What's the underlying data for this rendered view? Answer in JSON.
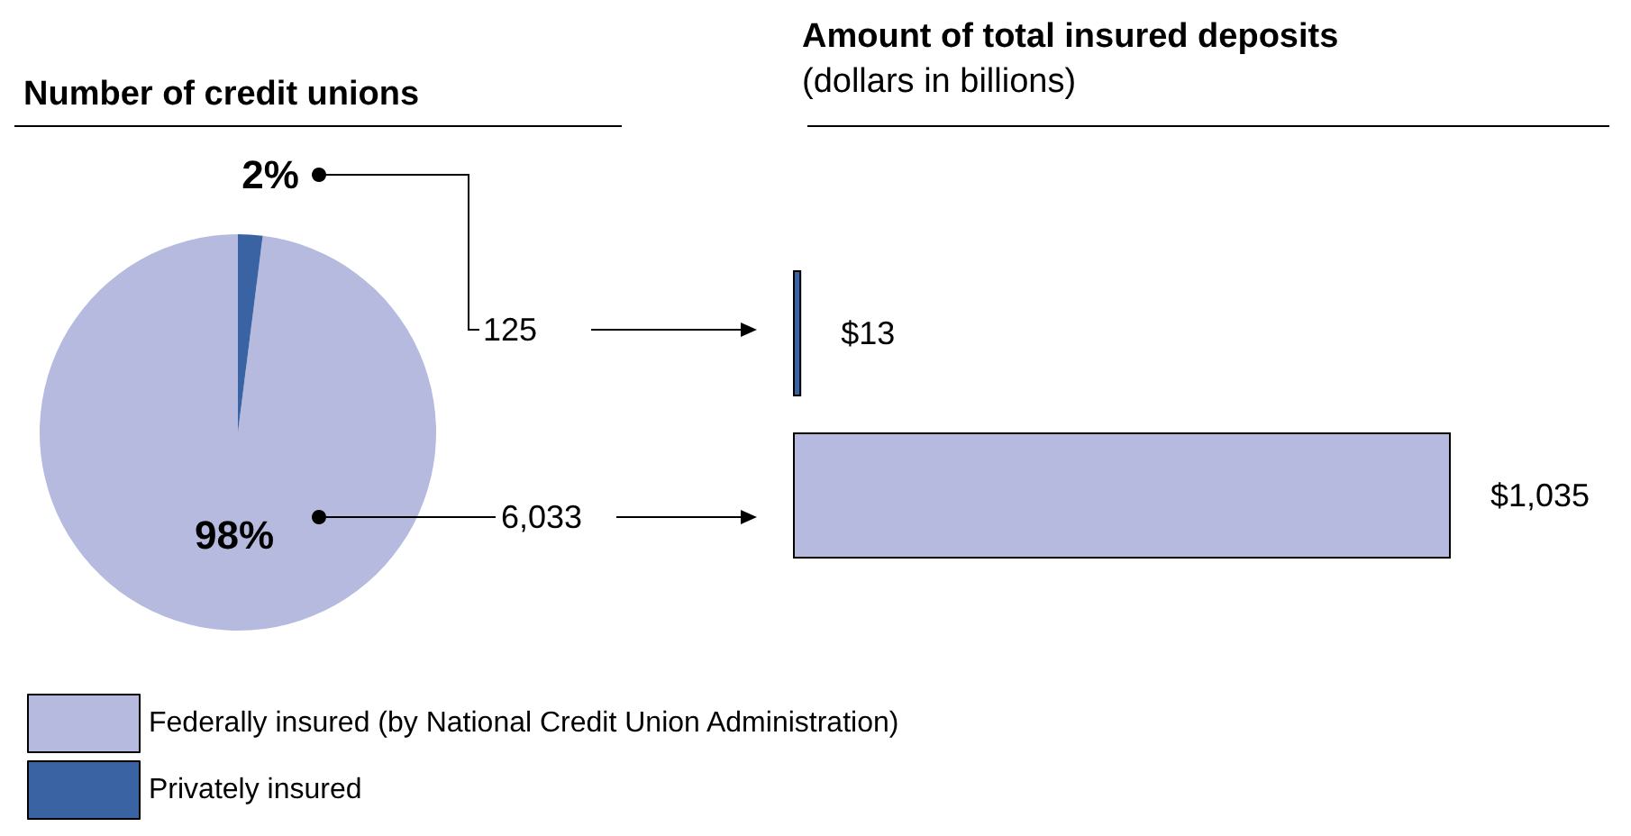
{
  "chart_data": [
    {
      "type": "pie",
      "title": "Number of credit unions",
      "categories": [
        "Federally insured (by National Credit Union Administration)",
        "Privately insured"
      ],
      "values": [
        98,
        2
      ],
      "colors": [
        "#b5bade",
        "#3a63a3"
      ],
      "value_labels": [
        "98%",
        "2%"
      ],
      "legend": "bottom",
      "annotations": [
        "6,033",
        "125"
      ]
    },
    {
      "type": "bar",
      "orientation": "horizontal",
      "title": "Amount of total insured deposits",
      "subtitle": "(dollars in billions)",
      "categories": [
        null,
        null
      ],
      "values": [
        13,
        1035
      ],
      "colors": [
        "#3a63a3",
        "#b5bade"
      ],
      "value_labels": [
        "$13",
        "$1,035"
      ]
    }
  ]
}
